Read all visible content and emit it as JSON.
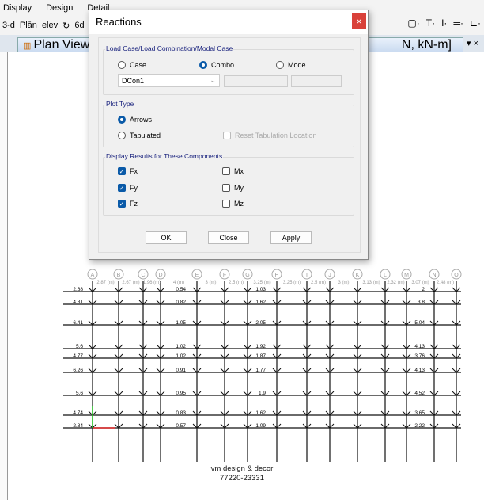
{
  "menu": [
    "Display",
    "Design",
    "Detail"
  ],
  "toolbar": {
    "items": [
      "3-d",
      "Plān",
      "elev",
      "↻",
      "6d"
    ]
  },
  "tabs": {
    "plan_view": "Plan View",
    "right_tab": "N, kN-m]",
    "tab_controls": "▾ ×"
  },
  "dialog": {
    "title": "Reactions",
    "close": "×",
    "load_group": {
      "label": "Load Case/Load Combination/Modal Case",
      "options": [
        "Case",
        "Combo",
        "Mode"
      ],
      "selected": "Combo",
      "dropdown_value": "DCon1"
    },
    "plot_group": {
      "label": "Plot Type",
      "options": [
        "Arrows",
        "Tabulated"
      ],
      "selected": "Arrows",
      "reset_label": "Reset Tabulation Location",
      "reset_checked": false,
      "reset_enabled": false
    },
    "components_group": {
      "label": "Display Results for These Components",
      "items": [
        {
          "label": "Fx",
          "checked": true
        },
        {
          "label": "Fy",
          "checked": true
        },
        {
          "label": "Fz",
          "checked": true
        },
        {
          "label": "Mx",
          "checked": false
        },
        {
          "label": "My",
          "checked": false
        },
        {
          "label": "Mz",
          "checked": false
        }
      ]
    },
    "buttons": {
      "ok": "OK",
      "close": "Close",
      "apply": "Apply"
    }
  },
  "plan": {
    "grid_columns": [
      "A",
      "B",
      "C",
      "D",
      "E",
      "F",
      "G",
      "H",
      "I",
      "J",
      "K",
      "L",
      "M",
      "N",
      "O"
    ],
    "spacings": [
      "2.87 (m)",
      "2.67 (m)",
      "1.96 (m)",
      "4 (m)",
      "3 (m)",
      "2.5 (m)",
      "3.25 (m)",
      "3.25 (m)",
      "2.5 (m)",
      "3 (m)",
      "3.13 (m)",
      "2.32 (m)",
      "3.07 (m)",
      "2.48 (m)"
    ],
    "row_values_left": [
      "2.68",
      "4.81",
      "6.41",
      "5.6",
      "4.77",
      "6.26",
      "5.6",
      "4.74",
      "2.84"
    ],
    "col_E_values": [
      "0.54",
      "0.82",
      "1.05",
      "1.02",
      "1.02",
      "0.91",
      "0.95",
      "0.83",
      "0.57"
    ],
    "col_H_values": [
      "1.03",
      "1.62",
      "2.05",
      "1.92",
      "1.87",
      "1.77",
      "1.9",
      "1.62",
      "1.09"
    ],
    "col_M_values": [
      "2",
      "3.8",
      "5.04",
      "4.13",
      "3.76",
      "4.13",
      "4.52",
      "3.65",
      "2.22"
    ]
  },
  "watermark": {
    "line1": "vm design & decor",
    "line2": "77220-23331"
  }
}
